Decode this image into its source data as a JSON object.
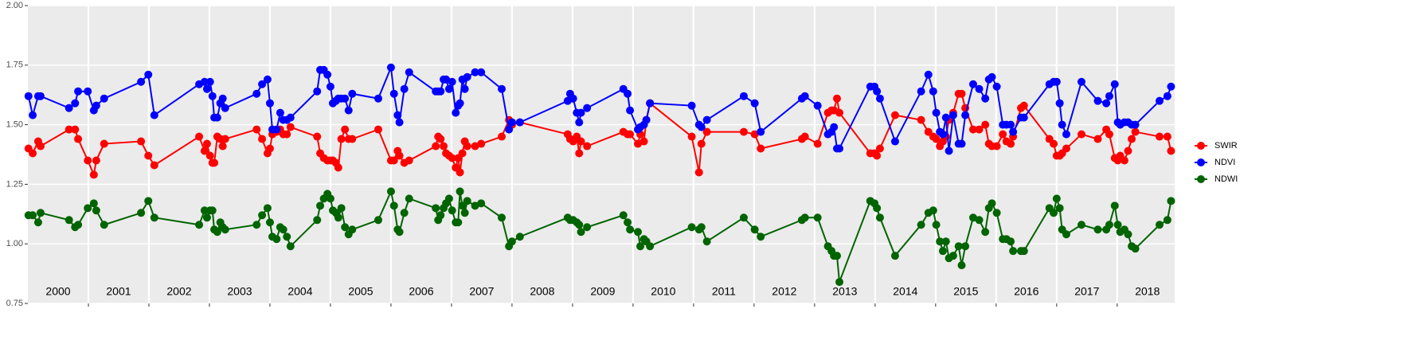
{
  "chart_data": {
    "type": "line",
    "x": [
      2000.01,
      2000.08,
      2000.17,
      2000.21,
      2000.68,
      2000.78,
      2000.83,
      2000.99,
      2001.09,
      2001.13,
      2001.26,
      2001.87,
      2001.99,
      2002.09,
      2002.83,
      2002.92,
      2002.96,
      2003.01,
      2003.05,
      2003.08,
      2003.13,
      2003.18,
      2003.22,
      2003.26,
      2003.78,
      2003.87,
      2003.96,
      2004.0,
      2004.04,
      2004.11,
      2004.17,
      2004.22,
      2004.28,
      2004.34,
      2004.78,
      2004.83,
      2004.89,
      2004.95,
      2005.0,
      2005.04,
      2005.09,
      2005.13,
      2005.18,
      2005.24,
      2005.3,
      2005.36,
      2005.79,
      2006.0,
      2006.05,
      2006.11,
      2006.14,
      2006.22,
      2006.3,
      2006.74,
      2006.78,
      2006.82,
      2006.87,
      2006.91,
      2006.96,
      2007.01,
      2007.07,
      2007.11,
      2007.14,
      2007.18,
      2007.22,
      2007.26,
      2007.39,
      2007.49,
      2007.83,
      2007.95,
      2008.0,
      2008.13,
      2008.92,
      2008.96,
      2009.01,
      2009.07,
      2009.11,
      2009.14,
      2009.24,
      2009.84,
      2009.91,
      2009.95,
      2010.08,
      2010.12,
      2010.18,
      2010.22,
      2010.28,
      2010.97,
      2011.09,
      2011.13,
      2011.22,
      2011.83,
      2012.01,
      2012.11,
      2012.79,
      2012.84,
      2013.05,
      2013.22,
      2013.28,
      2013.32,
      2013.37,
      2013.41,
      2013.92,
      2013.99,
      2014.03,
      2014.08,
      2014.33,
      2014.76,
      2014.88,
      2014.96,
      2015.01,
      2015.07,
      2015.12,
      2015.17,
      2015.22,
      2015.29,
      2015.38,
      2015.43,
      2015.49,
      2015.62,
      2015.72,
      2015.82,
      2015.88,
      2015.93,
      2016.01,
      2016.11,
      2016.17,
      2016.24,
      2016.28,
      2016.41,
      2016.46,
      2016.88,
      2016.95,
      2017.0,
      2017.05,
      2017.09,
      2017.16,
      2017.41,
      2017.68,
      2017.82,
      2017.87,
      2017.96,
      2018.01,
      2018.05,
      2018.12,
      2018.18,
      2018.24,
      2018.3,
      2018.7,
      2018.83,
      2018.89
    ],
    "series": [
      {
        "name": "SWIR",
        "color": "#ff0000",
        "values": [
          1.4,
          1.38,
          1.43,
          1.41,
          1.48,
          1.48,
          1.44,
          1.35,
          1.29,
          1.35,
          1.42,
          1.43,
          1.37,
          1.33,
          1.45,
          1.39,
          1.42,
          1.37,
          1.34,
          1.34,
          1.45,
          1.44,
          1.41,
          1.44,
          1.48,
          1.44,
          1.38,
          1.4,
          1.46,
          1.47,
          1.48,
          1.46,
          1.46,
          1.49,
          1.45,
          1.38,
          1.36,
          1.35,
          1.35,
          1.35,
          1.34,
          1.32,
          1.44,
          1.48,
          1.44,
          1.44,
          1.48,
          1.35,
          1.35,
          1.39,
          1.37,
          1.34,
          1.35,
          1.41,
          1.45,
          1.44,
          1.41,
          1.38,
          1.37,
          1.36,
          1.32,
          1.36,
          1.3,
          1.38,
          1.43,
          1.41,
          1.41,
          1.42,
          1.45,
          1.52,
          1.5,
          1.51,
          1.46,
          1.44,
          1.43,
          1.45,
          1.38,
          1.43,
          1.41,
          1.47,
          1.46,
          1.46,
          1.42,
          1.46,
          1.43,
          1.52,
          1.59,
          1.45,
          1.3,
          1.42,
          1.47,
          1.47,
          1.46,
          1.4,
          1.44,
          1.45,
          1.42,
          1.55,
          1.56,
          1.56,
          1.61,
          1.55,
          1.38,
          1.38,
          1.37,
          1.4,
          1.54,
          1.52,
          1.47,
          1.45,
          1.44,
          1.41,
          1.43,
          1.45,
          1.52,
          1.55,
          1.63,
          1.63,
          1.57,
          1.48,
          1.48,
          1.5,
          1.42,
          1.41,
          1.41,
          1.46,
          1.43,
          1.42,
          1.45,
          1.57,
          1.58,
          1.44,
          1.42,
          1.37,
          1.37,
          1.38,
          1.4,
          1.46,
          1.44,
          1.48,
          1.46,
          1.36,
          1.35,
          1.37,
          1.35,
          1.39,
          1.44,
          1.47,
          1.45,
          1.45,
          1.39
        ]
      },
      {
        "name": "NDVI",
        "color": "#0000ff",
        "values": [
          1.62,
          1.54,
          1.62,
          1.62,
          1.57,
          1.59,
          1.64,
          1.64,
          1.56,
          1.58,
          1.61,
          1.68,
          1.71,
          1.54,
          1.67,
          1.68,
          1.65,
          1.68,
          1.62,
          1.53,
          1.53,
          1.59,
          1.61,
          1.57,
          1.63,
          1.67,
          1.69,
          1.59,
          1.48,
          1.48,
          1.55,
          1.52,
          1.52,
          1.53,
          1.64,
          1.73,
          1.73,
          1.71,
          1.66,
          1.59,
          1.6,
          1.61,
          1.61,
          1.61,
          1.56,
          1.63,
          1.61,
          1.74,
          1.63,
          1.54,
          1.51,
          1.65,
          1.72,
          1.64,
          1.64,
          1.64,
          1.69,
          1.69,
          1.65,
          1.68,
          1.55,
          1.58,
          1.59,
          1.69,
          1.65,
          1.7,
          1.72,
          1.72,
          1.65,
          1.48,
          1.51,
          1.51,
          1.6,
          1.63,
          1.61,
          1.55,
          1.51,
          1.55,
          1.57,
          1.65,
          1.63,
          1.56,
          1.48,
          1.49,
          1.5,
          1.52,
          1.59,
          1.58,
          1.5,
          1.49,
          1.52,
          1.62,
          1.59,
          1.47,
          1.61,
          1.62,
          1.58,
          1.46,
          1.47,
          1.49,
          1.4,
          1.4,
          1.66,
          1.66,
          1.64,
          1.61,
          1.43,
          1.64,
          1.71,
          1.64,
          1.55,
          1.47,
          1.46,
          1.53,
          1.39,
          1.54,
          1.42,
          1.42,
          1.54,
          1.67,
          1.65,
          1.61,
          1.69,
          1.7,
          1.66,
          1.5,
          1.5,
          1.5,
          1.47,
          1.53,
          1.53,
          1.67,
          1.68,
          1.68,
          1.59,
          1.5,
          1.46,
          1.68,
          1.6,
          1.59,
          1.62,
          1.67,
          1.51,
          1.5,
          1.51,
          1.51,
          1.5,
          1.5,
          1.6,
          1.62,
          1.66
        ]
      },
      {
        "name": "NDWI",
        "color": "#006400",
        "values": [
          1.12,
          1.12,
          1.09,
          1.13,
          1.1,
          1.07,
          1.08,
          1.15,
          1.17,
          1.14,
          1.08,
          1.13,
          1.18,
          1.11,
          1.08,
          1.14,
          1.11,
          1.14,
          1.14,
          1.06,
          1.05,
          1.09,
          1.07,
          1.06,
          1.08,
          1.12,
          1.15,
          1.09,
          1.03,
          1.02,
          1.07,
          1.06,
          1.03,
          0.99,
          1.1,
          1.16,
          1.19,
          1.21,
          1.19,
          1.14,
          1.13,
          1.11,
          1.15,
          1.07,
          1.04,
          1.06,
          1.1,
          1.22,
          1.16,
          1.06,
          1.05,
          1.13,
          1.19,
          1.15,
          1.1,
          1.12,
          1.15,
          1.17,
          1.19,
          1.14,
          1.09,
          1.09,
          1.22,
          1.16,
          1.13,
          1.18,
          1.16,
          1.17,
          1.11,
          0.99,
          1.01,
          1.03,
          1.11,
          1.1,
          1.1,
          1.09,
          1.08,
          1.05,
          1.07,
          1.12,
          1.09,
          1.06,
          1.05,
          0.99,
          1.02,
          1.01,
          0.99,
          1.07,
          1.06,
          1.07,
          1.01,
          1.11,
          1.06,
          1.03,
          1.1,
          1.11,
          1.11,
          0.99,
          0.97,
          0.95,
          0.95,
          0.84,
          1.18,
          1.17,
          1.15,
          1.11,
          0.95,
          1.08,
          1.13,
          1.14,
          1.08,
          1.01,
          0.97,
          1.01,
          0.94,
          0.95,
          0.99,
          0.91,
          0.99,
          1.11,
          1.1,
          1.05,
          1.15,
          1.17,
          1.13,
          1.02,
          1.02,
          1.01,
          0.97,
          0.97,
          0.97,
          1.15,
          1.13,
          1.19,
          1.15,
          1.06,
          1.04,
          1.08,
          1.06,
          1.06,
          1.08,
          1.16,
          1.08,
          1.05,
          1.06,
          1.04,
          0.99,
          0.98,
          1.08,
          1.1,
          1.18
        ]
      }
    ],
    "year_labels": [
      "2000",
      "2001",
      "2002",
      "2003",
      "2004",
      "2005",
      "2006",
      "2007",
      "2008",
      "2009",
      "2010",
      "2011",
      "2012",
      "2013",
      "2014",
      "2015",
      "2016",
      "2017",
      "2018"
    ],
    "xlim": [
      2000,
      2018.95
    ],
    "xticks": [
      2001,
      2002,
      2003,
      2004,
      2005,
      2006,
      2007,
      2008,
      2009,
      2010,
      2011,
      2012,
      2013,
      2014,
      2015,
      2016,
      2017,
      2018
    ],
    "ylim": [
      0.75,
      2
    ],
    "yticks": [
      {
        "value": 0.75,
        "label": "0.75"
      },
      {
        "value": 1,
        "label": "1.00"
      },
      {
        "value": 1.25,
        "label": "1.25"
      },
      {
        "value": 1.5,
        "label": "1.50"
      },
      {
        "value": 1.75,
        "label": "1.75"
      },
      {
        "value": 2,
        "label": "2.00"
      }
    ],
    "grid": true,
    "legend": "right"
  }
}
